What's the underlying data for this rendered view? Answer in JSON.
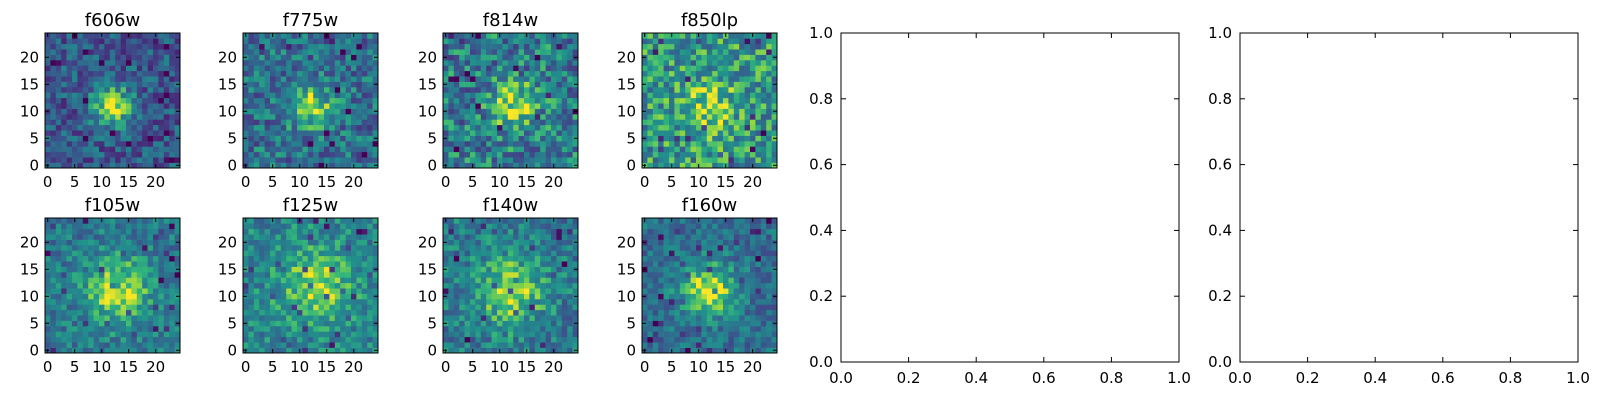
{
  "chart_data": {
    "type": "heatmap",
    "colormap": "viridis",
    "image_panels": [
      {
        "title": "f606w",
        "xlim": [
          -0.5,
          24.5
        ],
        "ylim": [
          -0.5,
          24.5
        ],
        "xticks": [
          0,
          5,
          10,
          15,
          20
        ],
        "yticks": [
          0,
          5,
          10,
          15,
          20
        ],
        "center": [
          12,
          11
        ],
        "peak": 0.95,
        "spread": 2.6,
        "background": 0.35,
        "noise": 0.22
      },
      {
        "title": "f775w",
        "xlim": [
          -0.5,
          24.5
        ],
        "ylim": [
          -0.5,
          24.5
        ],
        "xticks": [
          0,
          5,
          10,
          15,
          20
        ],
        "yticks": [
          0,
          5,
          10,
          15,
          20
        ],
        "center": [
          12,
          11
        ],
        "peak": 0.95,
        "spread": 2.8,
        "background": 0.45,
        "noise": 0.25
      },
      {
        "title": "f814w",
        "xlim": [
          -0.5,
          24.5
        ],
        "ylim": [
          -0.5,
          24.5
        ],
        "xticks": [
          0,
          5,
          10,
          15,
          20
        ],
        "yticks": [
          0,
          5,
          10,
          15,
          20
        ],
        "center": [
          13,
          11
        ],
        "peak": 0.92,
        "spread": 3.0,
        "background": 0.5,
        "noise": 0.28
      },
      {
        "title": "f850lp",
        "xlim": [
          -0.5,
          24.5
        ],
        "ylim": [
          -0.5,
          24.5
        ],
        "xticks": [
          0,
          5,
          10,
          15,
          20
        ],
        "yticks": [
          0,
          5,
          10,
          15,
          20
        ],
        "center": [
          12,
          11
        ],
        "peak": 0.9,
        "spread": 3.4,
        "background": 0.62,
        "noise": 0.26
      },
      {
        "title": "f105w",
        "xlim": [
          -0.5,
          24.5
        ],
        "ylim": [
          -0.5,
          24.5
        ],
        "xticks": [
          0,
          5,
          10,
          15,
          20
        ],
        "yticks": [
          0,
          5,
          10,
          15,
          20
        ],
        "center": [
          13,
          11
        ],
        "peak": 0.97,
        "spread": 4.0,
        "background": 0.5,
        "noise": 0.18
      },
      {
        "title": "f125w",
        "xlim": [
          -0.5,
          24.5
        ],
        "ylim": [
          -0.5,
          24.5
        ],
        "xticks": [
          0,
          5,
          10,
          15,
          20
        ],
        "yticks": [
          0,
          5,
          10,
          15,
          20
        ],
        "center": [
          13,
          12
        ],
        "peak": 0.9,
        "spread": 4.5,
        "background": 0.55,
        "noise": 0.18
      },
      {
        "title": "f140w",
        "xlim": [
          -0.5,
          24.5
        ],
        "ylim": [
          -0.5,
          24.5
        ],
        "xticks": [
          0,
          5,
          10,
          15,
          20
        ],
        "yticks": [
          0,
          5,
          10,
          15,
          20
        ],
        "center": [
          12,
          11
        ],
        "peak": 0.92,
        "spread": 4.3,
        "background": 0.5,
        "noise": 0.2
      },
      {
        "title": "f160w",
        "xlim": [
          -0.5,
          24.5
        ],
        "ylim": [
          -0.5,
          24.5
        ],
        "xticks": [
          0,
          5,
          10,
          15,
          20
        ],
        "yticks": [
          0,
          5,
          10,
          15,
          20
        ],
        "center": [
          12,
          11
        ],
        "peak": 0.98,
        "spread": 3.5,
        "background": 0.45,
        "noise": 0.18
      }
    ],
    "empty_panels": [
      {
        "xlim": [
          0,
          1
        ],
        "ylim": [
          0,
          1
        ],
        "xticks": [
          "0.0",
          "0.2",
          "0.4",
          "0.6",
          "0.8",
          "1.0"
        ],
        "yticks": [
          "0.0",
          "0.2",
          "0.4",
          "0.6",
          "0.8",
          "1.0"
        ]
      },
      {
        "xlim": [
          0,
          1
        ],
        "ylim": [
          0,
          1
        ],
        "xticks": [
          "0.0",
          "0.2",
          "0.4",
          "0.6",
          "0.8",
          "1.0"
        ],
        "yticks": [
          "0.0",
          "0.2",
          "0.4",
          "0.6",
          "0.8",
          "1.0"
        ]
      }
    ]
  }
}
